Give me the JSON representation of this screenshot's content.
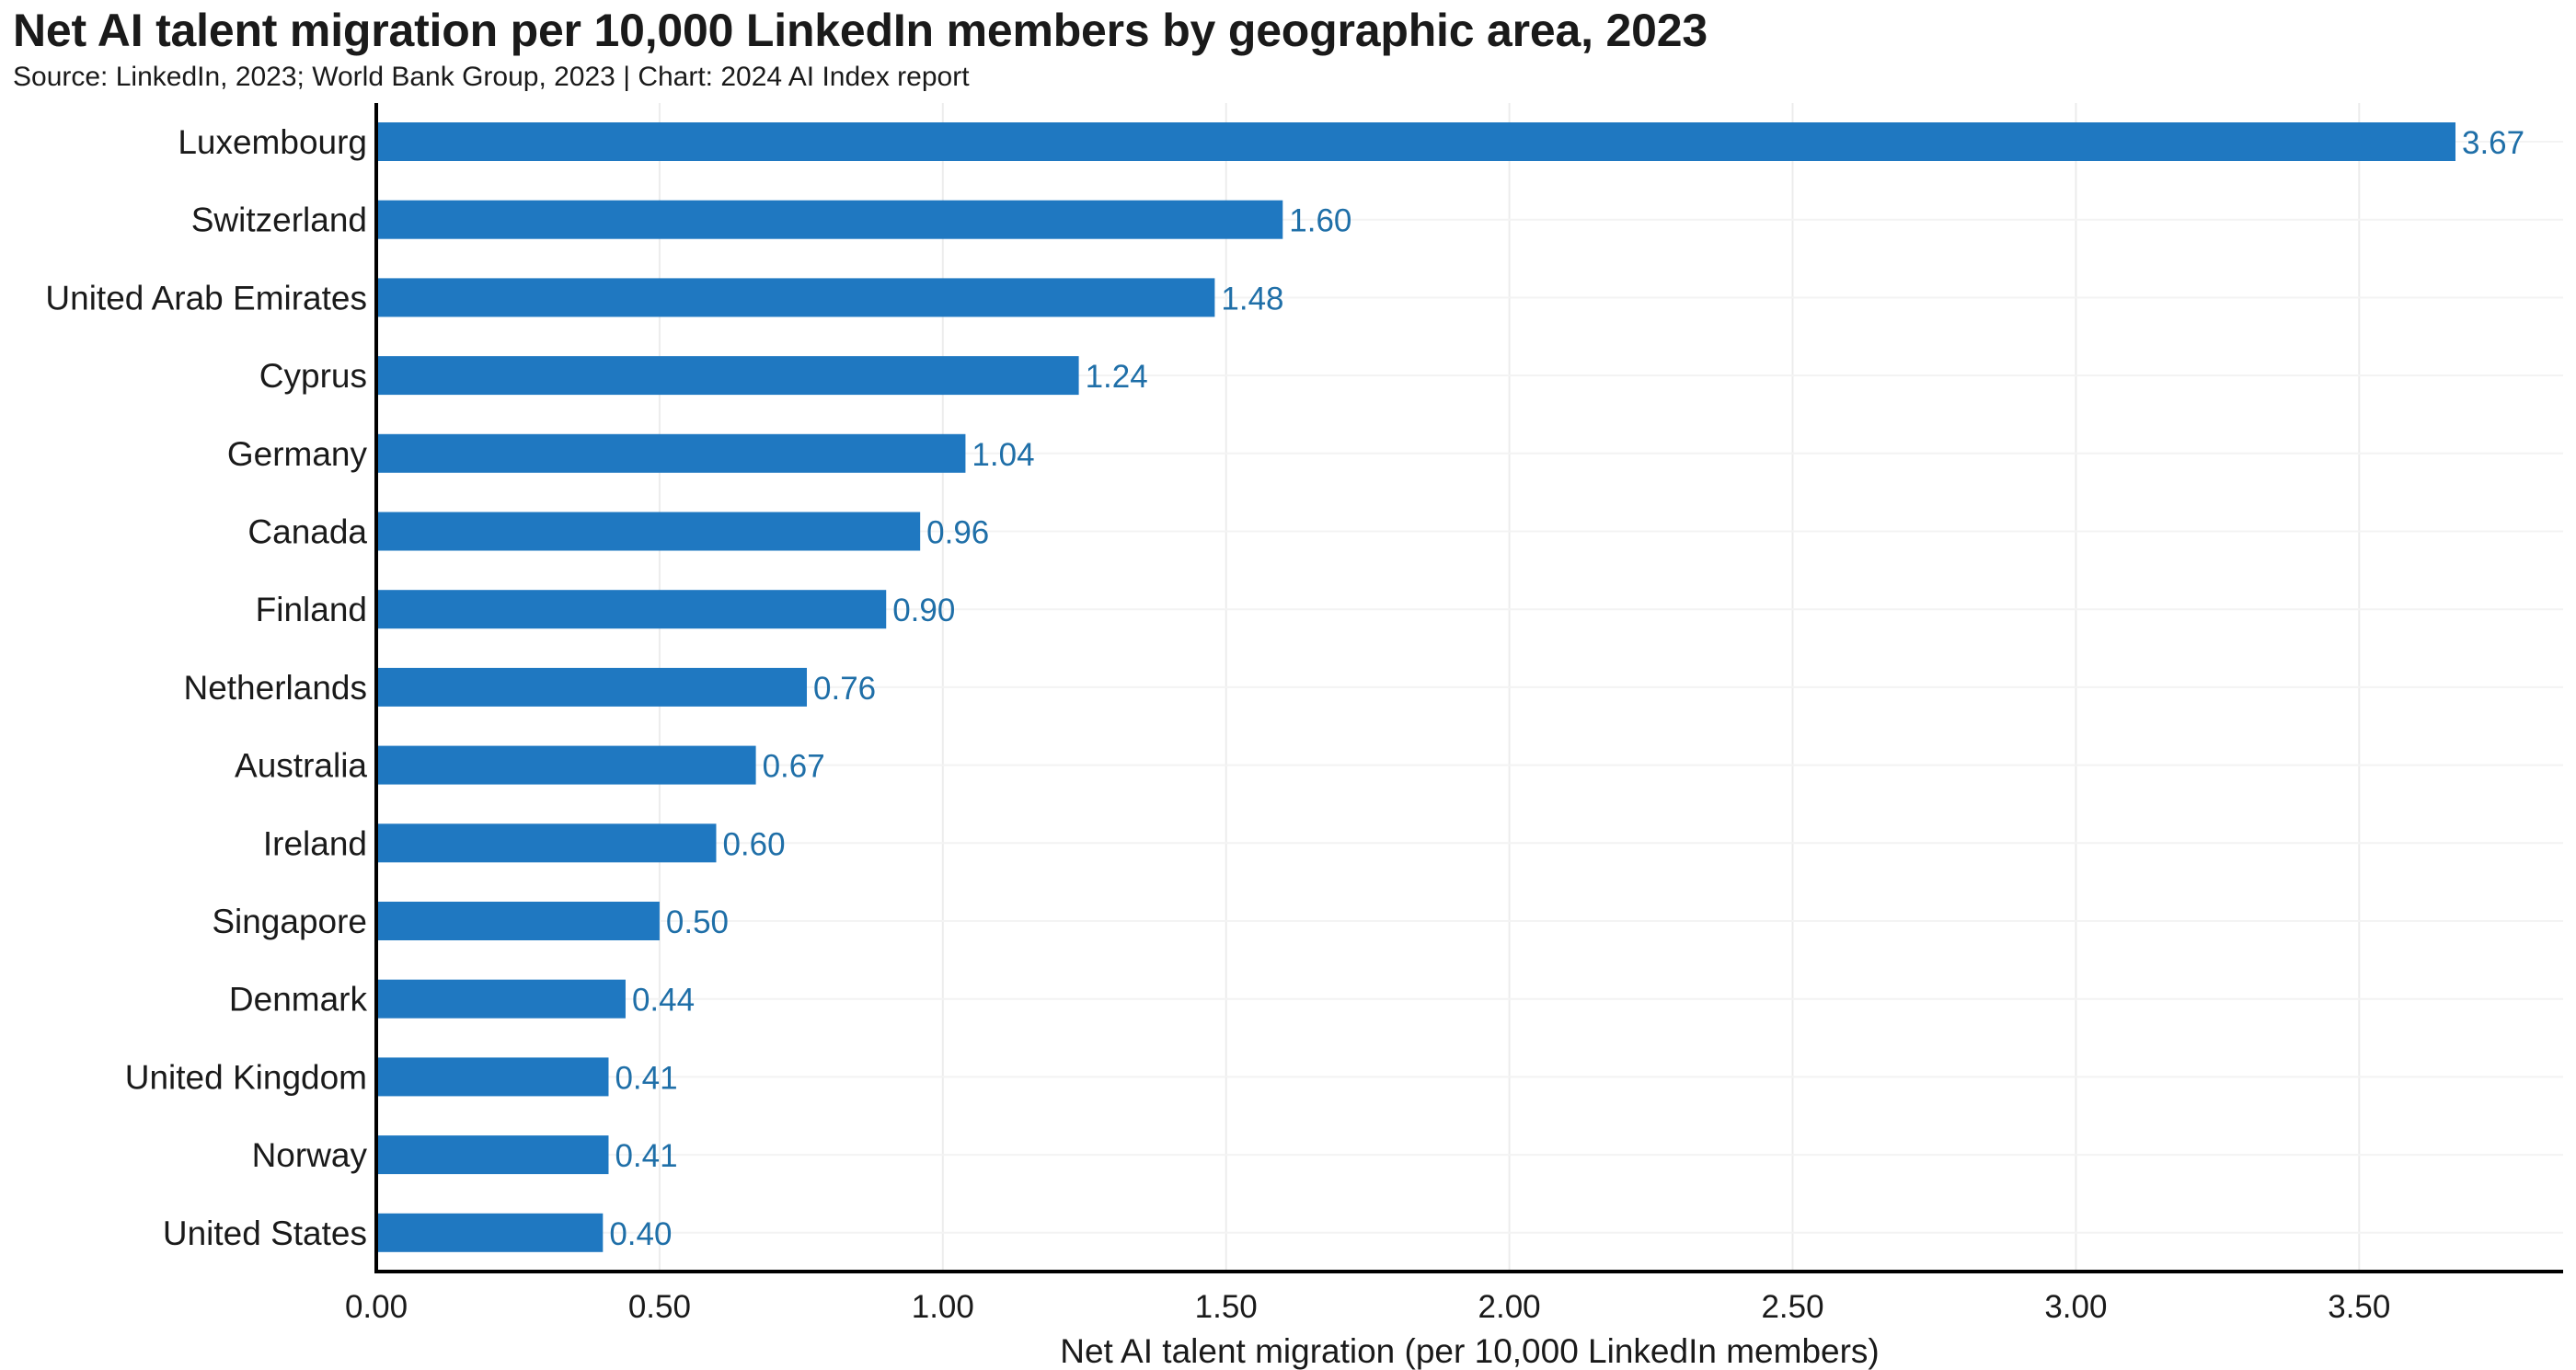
{
  "header": {
    "title": "Net AI talent migration per 10,000 LinkedIn members by geographic area, 2023",
    "subtitle": "Source: LinkedIn, 2023; World Bank Group, 2023 | Chart: 2024 AI Index report"
  },
  "colors": {
    "bar": "#1f78c1",
    "value_label": "#1f6fa8",
    "grid": "#ececec",
    "axis": "#000000"
  },
  "chart_data": {
    "type": "bar",
    "orientation": "horizontal",
    "title": "Net AI talent migration per 10,000 LinkedIn members by geographic area, 2023",
    "subtitle": "Source: LinkedIn, 2023; World Bank Group, 2023 | Chart: 2024 AI Index report",
    "categories": [
      "Luxembourg",
      "Switzerland",
      "United Arab Emirates",
      "Cyprus",
      "Germany",
      "Canada",
      "Finland",
      "Netherlands",
      "Australia",
      "Ireland",
      "Singapore",
      "Denmark",
      "United Kingdom",
      "Norway",
      "United States"
    ],
    "values": [
      3.67,
      1.6,
      1.48,
      1.24,
      1.04,
      0.96,
      0.9,
      0.76,
      0.67,
      0.6,
      0.5,
      0.44,
      0.41,
      0.41,
      0.4
    ],
    "value_labels": [
      "3.67",
      "1.60",
      "1.48",
      "1.24",
      "1.04",
      "0.96",
      "0.90",
      "0.76",
      "0.67",
      "0.60",
      "0.50",
      "0.44",
      "0.41",
      "0.41",
      "0.40"
    ],
    "xlabel": "Net AI talent migration (per 10,000 LinkedIn members)",
    "ylabel": "",
    "xlim": [
      0,
      3.86
    ],
    "xticks": [
      0,
      0.5,
      1.0,
      1.5,
      2.0,
      2.5,
      3.0,
      3.5
    ],
    "xtick_labels": [
      "0.00",
      "0.50",
      "1.00",
      "1.50",
      "2.00",
      "2.50",
      "3.00",
      "3.50"
    ],
    "grid": true,
    "legend": "none"
  }
}
